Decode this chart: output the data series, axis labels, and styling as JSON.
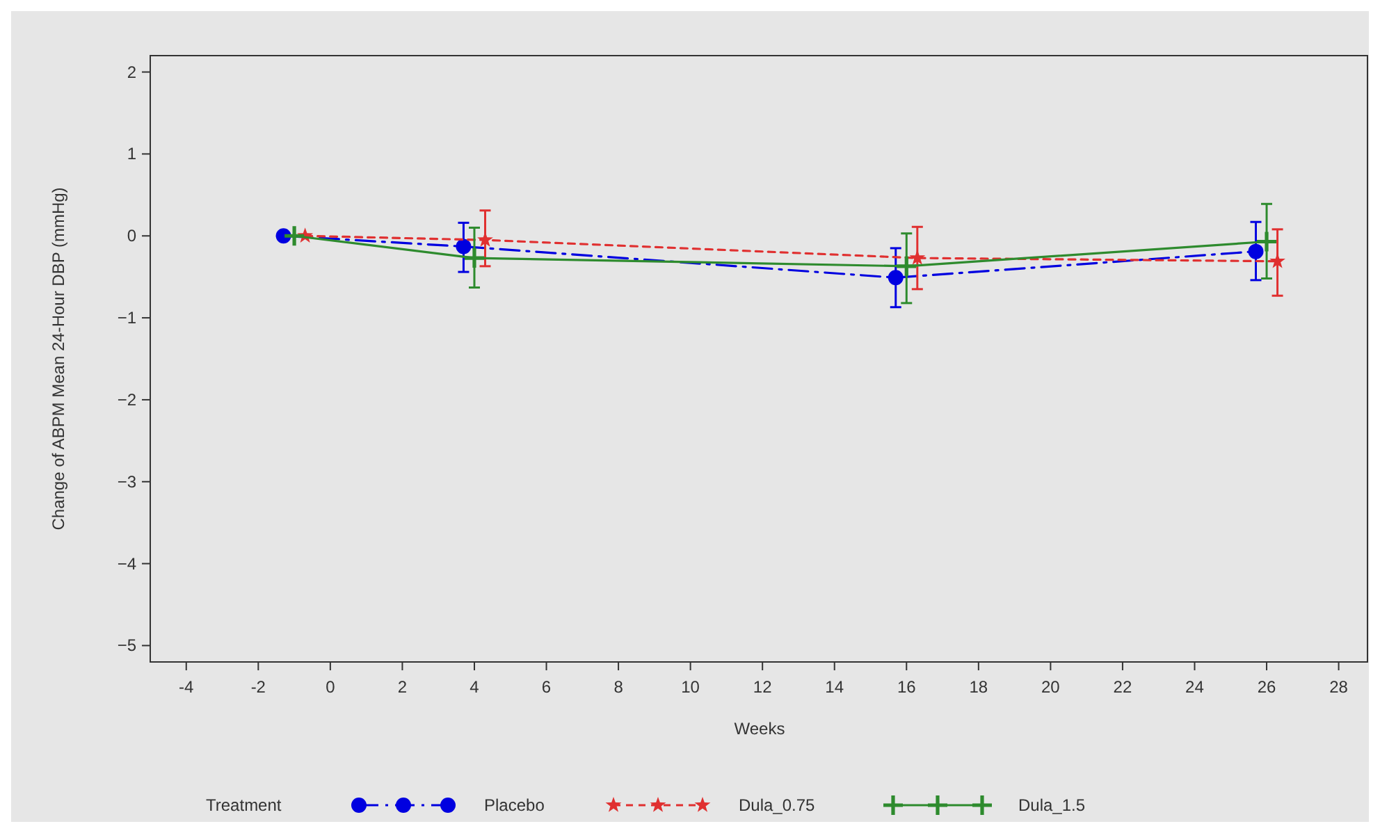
{
  "chart_data": {
    "type": "line",
    "xlabel": "Weeks",
    "ylabel": "Change of ABPM Mean 24-Hour DBP (mmHg)",
    "legend_title": "Treatment",
    "legend": "bottom",
    "grid": false,
    "xlim": [
      -5,
      28.8
    ],
    "xticks": [
      -4,
      -2,
      0,
      2,
      4,
      6,
      8,
      10,
      12,
      14,
      16,
      18,
      20,
      22,
      24,
      26,
      28
    ],
    "ylim": [
      -5.2,
      2.2
    ],
    "yticks": [
      {
        "value": -5,
        "label": "−5"
      },
      {
        "value": -4,
        "label": "−4"
      },
      {
        "value": -3,
        "label": "−3"
      },
      {
        "value": -2,
        "label": "−2"
      },
      {
        "value": -1,
        "label": "−1"
      },
      0,
      1,
      2
    ],
    "series": [
      {
        "name": "Placebo",
        "color": "#0000e0",
        "marker": "circle",
        "line_style": "dashed",
        "x": [
          -1.3,
          3.7,
          15.7,
          25.7
        ],
        "values": [
          0,
          -0.13,
          -0.51,
          -0.19
        ],
        "errors": [
          null,
          [
            -0.44,
            0.16
          ],
          [
            -0.87,
            -0.15
          ],
          [
            -0.54,
            0.17
          ]
        ]
      },
      {
        "name": "Dula_0.75",
        "color": "#e03030",
        "marker": "star",
        "line_style": "dotted",
        "x": [
          -0.7,
          4.3,
          16.3,
          26.3
        ],
        "values": [
          0,
          -0.05,
          -0.27,
          -0.31
        ],
        "errors": [
          null,
          [
            -0.37,
            0.31
          ],
          [
            -0.65,
            0.11
          ],
          [
            -0.73,
            0.08
          ]
        ]
      },
      {
        "name": "Dula_1.5",
        "color": "#2e8b2e",
        "marker": "cross",
        "line_style": "solid",
        "x": [
          -1,
          4,
          16,
          26
        ],
        "values": [
          0,
          -0.27,
          -0.37,
          -0.07
        ],
        "errors": [
          null,
          [
            -0.63,
            0.1
          ],
          [
            -0.82,
            0.03
          ],
          [
            -0.52,
            0.39
          ]
        ]
      }
    ]
  }
}
